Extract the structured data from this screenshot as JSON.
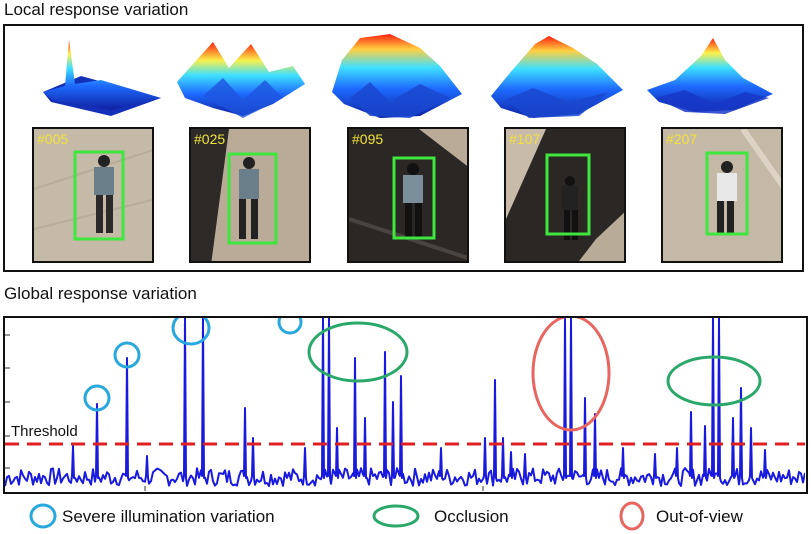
{
  "titles": {
    "local": "Local response variation",
    "global": "Global response variation"
  },
  "frames": [
    {
      "label": "#005"
    },
    {
      "label": "#025"
    },
    {
      "label": "#095"
    },
    {
      "label": "#107"
    },
    {
      "label": "#207"
    }
  ],
  "plot": {
    "threshold_label": "Threshold",
    "threshold_color": "#e02020",
    "line_color": "#1a1adf"
  },
  "legend": {
    "illumination": {
      "label": "Severe illumination variation",
      "color": "#29a8dd"
    },
    "occlusion": {
      "label": "Occlusion",
      "color": "#2aa86a"
    },
    "out_of_view": {
      "label": "Out-of-view",
      "color": "#e8665f"
    }
  }
}
